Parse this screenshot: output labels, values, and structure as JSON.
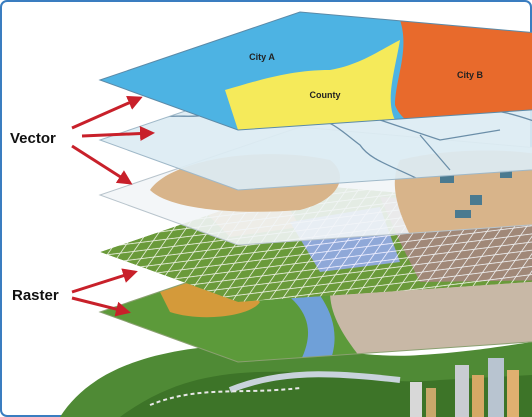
{
  "labels": {
    "vector": "Vector",
    "raster": "Raster"
  },
  "layers": {
    "city_a": "City A",
    "county": "County",
    "city_b": "City B"
  }
}
